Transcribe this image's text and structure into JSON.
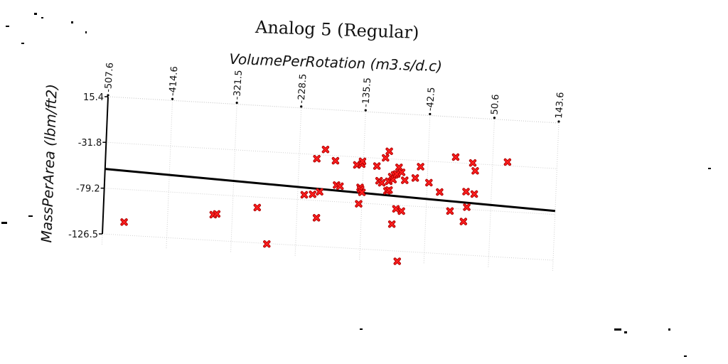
{
  "chart_data": {
    "type": "scatter",
    "title": "Analog 5 (Regular)",
    "xlabel": "VolumePerRotation (m3.s/d.c)",
    "ylabel": "MassPerArea (lbm/ft2)",
    "x_ticks": [
      "-507.6",
      "-414.6",
      "-321.5",
      "-228.5",
      "-135.5",
      "-42.5",
      "50.6",
      "143.6"
    ],
    "y_ticks": [
      "15.4",
      "-31.8",
      "-79.2",
      "-126.5"
    ],
    "xlim": [
      -507.6,
      143.6
    ],
    "ylim": [
      -126.5,
      15.4
    ],
    "grid": true,
    "marker_color": "#e00000",
    "series": [
      {
        "points": [
          {
            "x": -477,
            "y": -113
          },
          {
            "x": -349,
            "y": -100
          },
          {
            "x": -344,
            "y": -99
          },
          {
            "x": -286,
            "y": -90
          },
          {
            "x": -270,
            "y": -127
          },
          {
            "x": -219,
            "y": -74
          },
          {
            "x": -207,
            "y": -73
          },
          {
            "x": -200,
            "y": -97
          },
          {
            "x": -203,
            "y": -36
          },
          {
            "x": -197,
            "y": -70
          },
          {
            "x": -191,
            "y": -26
          },
          {
            "x": -176,
            "y": -37
          },
          {
            "x": -173,
            "y": -62
          },
          {
            "x": -168,
            "y": -63
          },
          {
            "x": -145,
            "y": -40
          },
          {
            "x": -138,
            "y": -39
          },
          {
            "x": -137,
            "y": -36
          },
          {
            "x": -139,
            "y": -63
          },
          {
            "x": -138,
            "y": -65
          },
          {
            "x": -136,
            "y": -68
          },
          {
            "x": -140,
            "y": -80
          },
          {
            "x": -116,
            "y": -40
          },
          {
            "x": -112,
            "y": -55
          },
          {
            "x": -108,
            "y": -57
          },
          {
            "x": -104,
            "y": -31
          },
          {
            "x": -99,
            "y": -24
          },
          {
            "x": -100,
            "y": -65
          },
          {
            "x": -97,
            "y": -64
          },
          {
            "x": -98,
            "y": -55
          },
          {
            "x": -94,
            "y": -50
          },
          {
            "x": -92,
            "y": -53
          },
          {
            "x": -90,
            "y": -48
          },
          {
            "x": -87,
            "y": -47
          },
          {
            "x": -84,
            "y": -40
          },
          {
            "x": -80,
            "y": -45
          },
          {
            "x": -75,
            "y": -53
          },
          {
            "x": -86,
            "y": -83
          },
          {
            "x": -91,
            "y": -99
          },
          {
            "x": -78,
            "y": -85
          },
          {
            "x": -60,
            "y": -50
          },
          {
            "x": -53,
            "y": -38
          },
          {
            "x": -40,
            "y": -54
          },
          {
            "x": -24,
            "y": -63
          },
          {
            "x": -8,
            "y": -82
          },
          {
            "x": -3,
            "y": -26
          },
          {
            "x": 14,
            "y": -61
          },
          {
            "x": 12,
            "y": -92
          },
          {
            "x": 16,
            "y": -77
          },
          {
            "x": 22,
            "y": -31
          },
          {
            "x": 26,
            "y": -39
          },
          {
            "x": 26,
            "y": -63
          },
          {
            "x": 72,
            "y": -28
          },
          {
            "x": -81,
            "y": -137
          }
        ]
      }
    ],
    "trendline": {
      "x": [
        -507.6,
        143.6
      ],
      "y": [
        -59.3,
        -75.6
      ]
    }
  }
}
